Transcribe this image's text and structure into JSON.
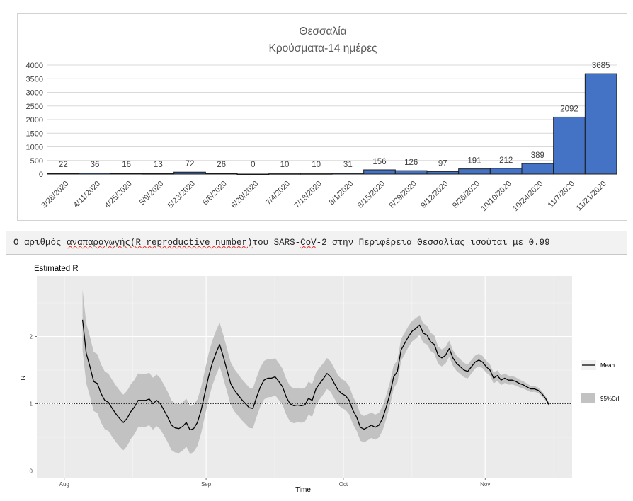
{
  "chart_data": [
    {
      "type": "bar",
      "title": "Θεσσαλία",
      "subtitle": "Κρούσματα-14 ημέρες",
      "categories": [
        "3/28/2020",
        "4/11/2020",
        "4/25/2020",
        "5/9/2020",
        "5/23/2020",
        "6/6/2020",
        "6/20/2020",
        "7/4/2020",
        "7/18/2020",
        "8/1/2020",
        "8/15/2020",
        "8/29/2020",
        "9/12/2020",
        "9/26/2020",
        "10/10/2020",
        "10/24/2020",
        "11/7/2020",
        "11/21/2020"
      ],
      "values": [
        22,
        36,
        16,
        13,
        72,
        26,
        0,
        10,
        10,
        31,
        156,
        126,
        97,
        191,
        212,
        389,
        2092,
        3685
      ],
      "ylim": [
        0,
        4000
      ],
      "yticks": [
        0,
        500,
        1000,
        1500,
        2000,
        2500,
        3000,
        3500,
        4000
      ],
      "bar_color": "#4472c4",
      "data_labels": true,
      "grid": true,
      "legend": "none"
    },
    {
      "type": "line",
      "title": "Estimated R",
      "xlabel": "Time",
      "ylabel": "R",
      "x_start": "2020-08-05",
      "x_end": "2020-11-15",
      "xlim": [
        "2020-07-26",
        "2020-11-20"
      ],
      "ylim": [
        -0.1,
        2.9
      ],
      "yticks": [
        0,
        1,
        2
      ],
      "xticks": [
        {
          "date": "2020-08-01",
          "label": "Aug"
        },
        {
          "date": "2020-09-01",
          "label": "Sep"
        },
        {
          "date": "2020-10-01",
          "label": "Oct"
        },
        {
          "date": "2020-11-01",
          "label": "Nov"
        }
      ],
      "reference_line": 1,
      "grid": true,
      "legend": "right",
      "series": [
        {
          "name": "Mean",
          "type": "line",
          "color": "#000000",
          "values": [
            2.25,
            1.75,
            1.55,
            1.33,
            1.3,
            1.15,
            1.05,
            1.02,
            0.93,
            0.85,
            0.78,
            0.72,
            0.78,
            0.88,
            0.95,
            1.05,
            1.05,
            1.05,
            1.07,
            1.0,
            1.05,
            1.0,
            0.9,
            0.8,
            0.68,
            0.64,
            0.63,
            0.66,
            0.72,
            0.61,
            0.63,
            0.72,
            0.9,
            1.15,
            1.4,
            1.6,
            1.75,
            1.88,
            1.7,
            1.5,
            1.3,
            1.2,
            1.13,
            1.06,
            1.0,
            0.94,
            0.93,
            1.1,
            1.25,
            1.35,
            1.38,
            1.38,
            1.4,
            1.33,
            1.25,
            1.1,
            1.0,
            0.97,
            0.98,
            0.97,
            0.98,
            1.08,
            1.05,
            1.22,
            1.3,
            1.37,
            1.45,
            1.4,
            1.3,
            1.2,
            1.15,
            1.12,
            1.05,
            0.9,
            0.8,
            0.65,
            0.62,
            0.65,
            0.68,
            0.65,
            0.68,
            0.78,
            0.95,
            1.15,
            1.4,
            1.48,
            1.8,
            1.9,
            2.0,
            2.08,
            2.12,
            2.17,
            2.05,
            2.02,
            1.92,
            1.88,
            1.72,
            1.68,
            1.72,
            1.82,
            1.68,
            1.6,
            1.55,
            1.5,
            1.48,
            1.55,
            1.62,
            1.65,
            1.62,
            1.55,
            1.5,
            1.38,
            1.42,
            1.35,
            1.38,
            1.35,
            1.35,
            1.33,
            1.3,
            1.28,
            1.25,
            1.22,
            1.22,
            1.2,
            1.15,
            1.08,
            0.98
          ]
        },
        {
          "name": "95%CrI",
          "type": "band",
          "color": "#c2c2c2",
          "halfwidth_start": 0.45,
          "halfwidth_end": 0.03
        }
      ]
    }
  ],
  "banner": {
    "prefix": "Ο αριθμός ",
    "misspelled": "αναπαραγωγής(R=reproductive number)",
    "middle": "του SARS-",
    "misspelled2": "CoV",
    "suffix": "-2 στην Περιφέρεια Θεσσαλίας ισούται με 0.99"
  }
}
